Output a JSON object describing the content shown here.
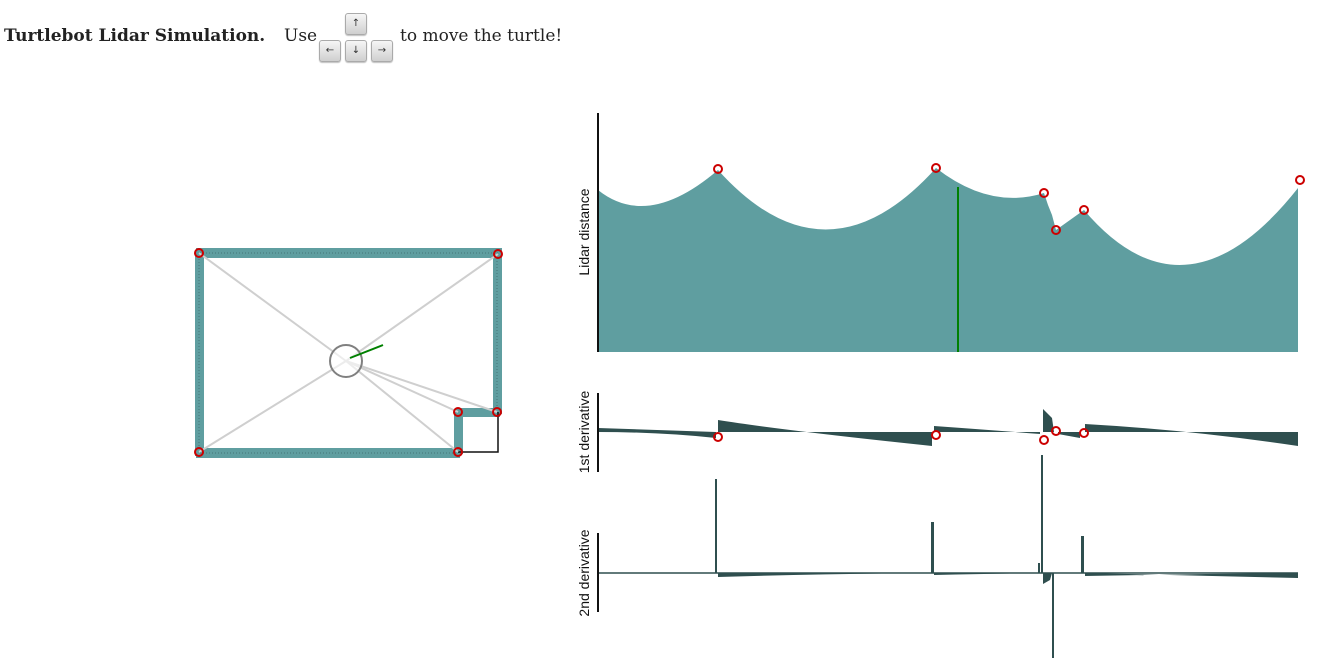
{
  "header": {
    "title": "Turtlebot Lidar Simulation.",
    "use_text": "Use",
    "instruction_text": "to move the turtle!",
    "keys": {
      "up": "↑",
      "left": "←",
      "down": "↓",
      "right": "→"
    }
  },
  "colors": {
    "wall": "#5f9ea0",
    "corner_marker": "#cc0000",
    "heading": "#008000",
    "ray": "#cfcfcf",
    "derivative_fill": "#2f4f4f"
  },
  "chart_data": [
    {
      "type": "area",
      "ylabel": "Lidar distance",
      "x": [
        0,
        0.17,
        0.48,
        0.51,
        0.64,
        0.655,
        0.69,
        0.84,
        1.0
      ],
      "peaks_at_x": [
        0.17,
        0.48,
        0.64,
        0.655,
        0.69,
        1.0
      ],
      "heading_marker_x": 0.515
    },
    {
      "type": "area",
      "ylabel": "1st derivative",
      "discontinuities_at_x": [
        0.17,
        0.48,
        0.64,
        0.655,
        0.69,
        1.0
      ]
    },
    {
      "type": "area",
      "ylabel": "2nd derivative",
      "spikes_at_x": [
        0.17,
        0.48,
        0.63,
        0.65,
        0.69
      ]
    }
  ]
}
